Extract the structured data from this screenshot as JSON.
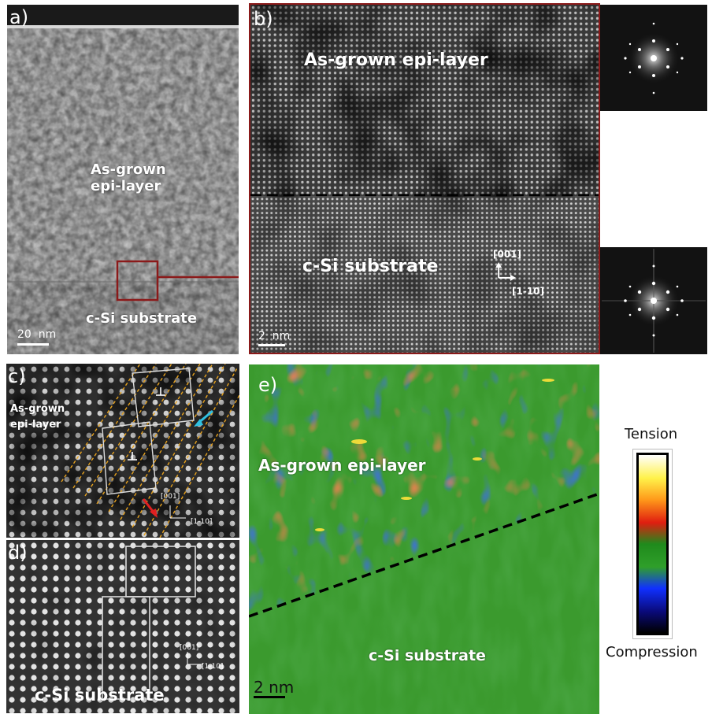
{
  "panels": {
    "a": {
      "label": "a)",
      "text_epi": "As-grown\nepi-layer",
      "text_substrate": "c-Si substrate",
      "scale": "20  nm"
    },
    "b": {
      "label": "b)",
      "text_epi": "As-grown epi-layer",
      "text_substrate": "c-Si substrate",
      "axis_001": "[001]",
      "axis_110": "[1-10]",
      "scale": "2  nm"
    },
    "c": {
      "label": "c)",
      "text_epi": "As-grown\nepi-layer",
      "axis_001": "[001]",
      "axis_110": "[1-10]"
    },
    "d": {
      "label": "d)",
      "text_substrate": "c-Si substrate",
      "axis_001": "[001]",
      "axis_110": "[1-10]"
    },
    "e": {
      "label": "e)",
      "text_epi": "As-grown epi-layer",
      "text_substrate": "c-Si substrate",
      "scale": "2 nm"
    }
  },
  "colorbar": {
    "top_label": "Tension",
    "bottom_label": "Compression",
    "stops": [
      "#ffffff",
      "#fff24a",
      "#ff9a1a",
      "#e01e10",
      "#1f8a1c",
      "#2f9f2a",
      "#1030ff",
      "#0a0a7a",
      "#000000"
    ]
  },
  "colors": {
    "outline_red": "#8b1a1a",
    "arrow_cyan": "#30c0e0",
    "arrow_red": "#e02020",
    "lattice_lines": "#e7a21e",
    "strain_green": "#3b9a2e"
  }
}
